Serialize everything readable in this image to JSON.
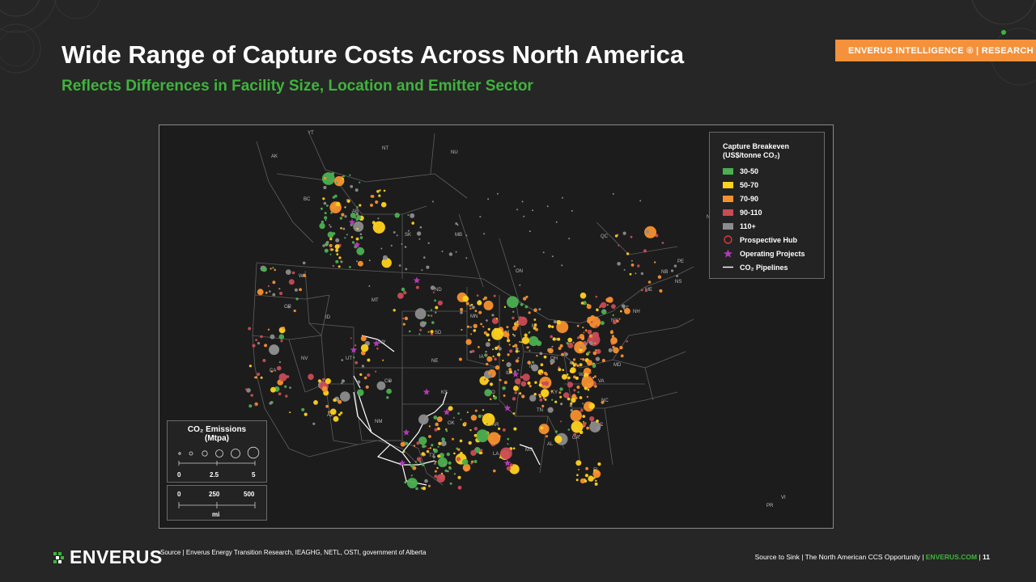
{
  "header": {
    "title": "Wide Range of Capture Costs Across North America",
    "subtitle": "Reflects Differences in Facility Size, Location and Emitter Sector",
    "badge": "ENVERUS INTELLIGENCE ® | RESEARCH"
  },
  "legend": {
    "heading_line1": "Capture Breakeven",
    "heading_line2": "(US$/tonne CO₂)",
    "items": [
      {
        "label": "30-50",
        "color": "#4caf50"
      },
      {
        "label": "50-70",
        "color": "#ffd21f"
      },
      {
        "label": "70-90",
        "color": "#f7902e"
      },
      {
        "label": "90-110",
        "color": "#c94b56"
      },
      {
        "label": "110+",
        "color": "#8c8c8c"
      }
    ],
    "hub_label": "Prospective Hub",
    "hub_color": "#e03b3b",
    "projects_label": "Operating Projects",
    "projects_color": "#b23bb7",
    "pipelines_label": "CO₂ Pipelines"
  },
  "emissions_legend": {
    "title_line1": "CO₂ Emissions",
    "title_line2": "(Mtpa)",
    "ticks": [
      "0",
      "2.5",
      "5"
    ]
  },
  "scale_bar": {
    "ticks": [
      "0",
      "250",
      "500"
    ],
    "unit": "mi"
  },
  "region_labels": [
    "YT",
    "NT",
    "NU",
    "AK",
    "BC",
    "AB",
    "SK",
    "MB",
    "QC",
    "ON",
    "NL",
    "NB",
    "NS",
    "PE",
    "WA",
    "OR",
    "ID",
    "MT",
    "WY",
    "ND",
    "SD",
    "NE",
    "MN",
    "IA",
    "WI",
    "MI",
    "IL",
    "IN",
    "OH",
    "PA",
    "NY",
    "VT",
    "NH",
    "ME",
    "CA",
    "NV",
    "UT",
    "CO",
    "KS",
    "MO",
    "KY",
    "WV",
    "VA",
    "MD",
    "NC",
    "TN",
    "SC",
    "GA",
    "AL",
    "MS",
    "AR",
    "OK",
    "TX",
    "LA",
    "AZ",
    "NM",
    "FL",
    "VI",
    "PR"
  ],
  "footer": {
    "logo_text": "ENVERUS",
    "source": "Source | Enverus Energy Transition Research, IEAGHG, NETL, OSTI, government of Alberta",
    "report": "Source to Sink | The North American CCS Opportunity | ",
    "brand": "ENVERUS.COM",
    "page_sep": " | ",
    "page": "11"
  }
}
